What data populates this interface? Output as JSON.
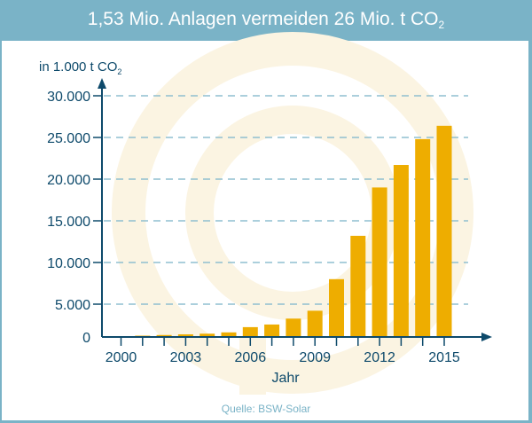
{
  "header": {
    "title": "1,53 Mio. Anlagen vermeiden 26 Mio. t CO",
    "title_sub": "2"
  },
  "source": "Quelle: BSW-Solar",
  "colors": {
    "header": "#7ab3c7",
    "bar": "#eead00",
    "axis": "#0e4a6b",
    "grid": "#8fbfd0",
    "watermark": "#fbf4e2"
  },
  "chart_data": {
    "type": "bar",
    "title": "1,53 Mio. Anlagen vermeiden 26 Mio. t CO2",
    "ylabel": "in 1.000 t CO",
    "ylabel_sub": "2",
    "xlabel": "Jahr",
    "categories": [
      2000,
      2001,
      2002,
      2003,
      2004,
      2005,
      2006,
      2007,
      2008,
      2009,
      2010,
      2011,
      2012,
      2013,
      2014,
      2015
    ],
    "values": [
      100,
      200,
      300,
      400,
      500,
      700,
      1500,
      1900,
      2800,
      4000,
      8000,
      13200,
      19000,
      21700,
      24800,
      26400
    ],
    "x_tick_labels": [
      "2000",
      "2003",
      "2006",
      "2009",
      "2012",
      "2015"
    ],
    "y_ticks": [
      0,
      5000,
      10000,
      15000,
      20000,
      25000,
      30000
    ],
    "y_tick_labels": [
      "0",
      "5.000",
      "10.000",
      "15.000",
      "20.000",
      "25.000",
      "30.000"
    ],
    "ylim": [
      0,
      30000
    ],
    "grid": "horizontal dashed"
  }
}
